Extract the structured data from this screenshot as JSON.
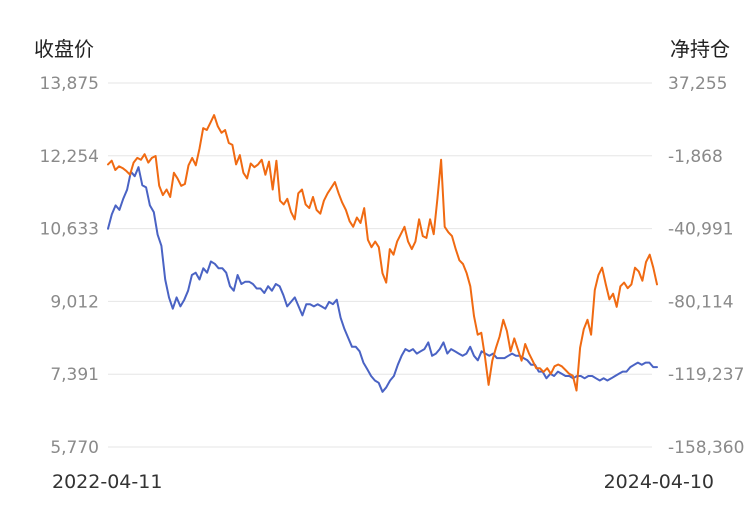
{
  "chart_data": {
    "type": "line",
    "left_axis": {
      "title": "收盘价",
      "ylim": [
        5770,
        13875
      ],
      "ticks": [
        "13,875",
        "12,254",
        "10,633",
        "9,012",
        "7,391",
        "5,770"
      ]
    },
    "right_axis": {
      "title": "净持仓",
      "ylim": [
        -158360,
        37255
      ],
      "ticks": [
        "37,255",
        "-1,868",
        "-40,991",
        "-80,114",
        "-119,237",
        "-158,360"
      ]
    },
    "x_start": "2022-04-11",
    "x_end": "2024-04-10",
    "grid": true,
    "series": [
      {
        "axis": "left",
        "color": "#4a63c4",
        "values": [
          10630,
          10950,
          11150,
          11050,
          11300,
          11500,
          11900,
          11800,
          12000,
          11600,
          11550,
          11150,
          11000,
          10500,
          10250,
          9500,
          9100,
          8850,
          9100,
          8900,
          9050,
          9250,
          9600,
          9650,
          9500,
          9750,
          9650,
          9900,
          9850,
          9750,
          9750,
          9650,
          9350,
          9250,
          9600,
          9400,
          9450,
          9450,
          9400,
          9300,
          9300,
          9200,
          9350,
          9250,
          9400,
          9350,
          9150,
          8900,
          9000,
          9100,
          8900,
          8700,
          8950,
          8950,
          8900,
          8950,
          8900,
          8850,
          9000,
          8950,
          9050,
          8650,
          8400,
          8200,
          8000,
          8000,
          7900,
          7650,
          7500,
          7350,
          7250,
          7200,
          7000,
          7100,
          7250,
          7350,
          7600,
          7800,
          7950,
          7900,
          7950,
          7850,
          7900,
          7950,
          8100,
          7800,
          7850,
          7950,
          8100,
          7850,
          7950,
          7900,
          7850,
          7800,
          7850,
          8000,
          7800,
          7700,
          7900,
          7850,
          7800,
          7850,
          7750,
          7750,
          7750,
          7800,
          7850,
          7800,
          7800,
          7750,
          7700,
          7600,
          7600,
          7450,
          7450,
          7300,
          7400,
          7350,
          7450,
          7400,
          7350,
          7350,
          7300,
          7350,
          7350,
          7300,
          7350,
          7350,
          7300,
          7250,
          7300,
          7250,
          7300,
          7350,
          7400,
          7450,
          7450,
          7550,
          7600,
          7650,
          7600,
          7650,
          7650,
          7550,
          7550
        ]
      },
      {
        "axis": "right",
        "color": "#f06a12",
        "values": [
          -6500,
          -4500,
          -9500,
          -7500,
          -8500,
          -10000,
          -12000,
          -5500,
          -3000,
          -4000,
          -1000,
          -5500,
          -3000,
          -2000,
          -18000,
          -23000,
          -20000,
          -24000,
          -11000,
          -14000,
          -18000,
          -17000,
          -7000,
          -3000,
          -7000,
          2000,
          13000,
          12000,
          16000,
          20000,
          14000,
          10500,
          12000,
          5000,
          4000,
          -6500,
          -1500,
          -11000,
          -14000,
          -6000,
          -8000,
          -6500,
          -4000,
          -12000,
          -5000,
          -20000,
          -4500,
          -26000,
          -28000,
          -25000,
          -32000,
          -36000,
          -22000,
          -20000,
          -28000,
          -30000,
          -24000,
          -31000,
          -33000,
          -26000,
          -22000,
          -19000,
          -16000,
          -22000,
          -27000,
          -31000,
          -37000,
          -40000,
          -35000,
          -38000,
          -30000,
          -47000,
          -51000,
          -48000,
          -51000,
          -65000,
          -70000,
          -52000,
          -55000,
          -48000,
          -44000,
          -40000,
          -48000,
          -52000,
          -48000,
          -36000,
          -45000,
          -46000,
          -36000,
          -44000,
          -25000,
          -4000,
          -40000,
          -43000,
          -45000,
          -52000,
          -58000,
          -60000,
          -65000,
          -72000,
          -88000,
          -98000,
          -97000,
          -110000,
          -125000,
          -112000,
          -105000,
          -99000,
          -90000,
          -96000,
          -107000,
          -100000,
          -106000,
          -112000,
          -103000,
          -108000,
          -112000,
          -116000,
          -116000,
          -118000,
          -116000,
          -119000,
          -115000,
          -114000,
          -115000,
          -117000,
          -119000,
          -120000,
          -128000,
          -105000,
          -95000,
          -90000,
          -98000,
          -74000,
          -66000,
          -62000,
          -71000,
          -79000,
          -76000,
          -83000,
          -72000,
          -70000,
          -73000,
          -71000,
          -62000,
          -64000,
          -69000,
          -59000,
          -55000,
          -62000,
          -71000
        ]
      }
    ]
  }
}
